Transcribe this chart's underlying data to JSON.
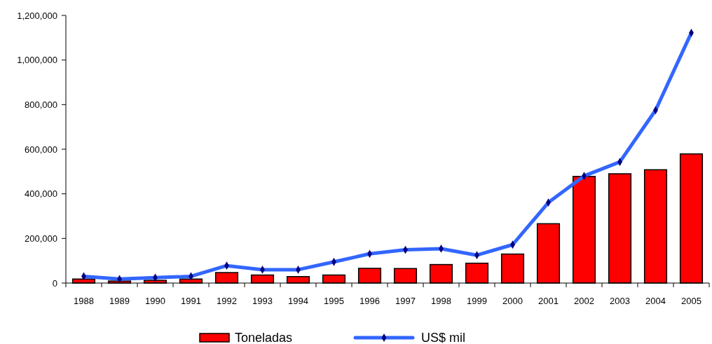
{
  "chart_data": {
    "type": "bar",
    "categories": [
      "1988",
      "1989",
      "1990",
      "1991",
      "1992",
      "1993",
      "1994",
      "1995",
      "1996",
      "1997",
      "1998",
      "1999",
      "2000",
      "2001",
      "2002",
      "2003",
      "2004",
      "2005"
    ],
    "series": [
      {
        "name": "Toneladas",
        "color": "#ff0000",
        "values": [
          18000,
          9000,
          12000,
          18000,
          47000,
          36000,
          29000,
          36000,
          66000,
          65000,
          83000,
          89000,
          130000,
          266000,
          478000,
          490000,
          508000,
          579000
        ]
      },
      {
        "name": "US$ mil",
        "type": "line",
        "color": "#3366ff",
        "marker": "diamond",
        "values": [
          30000,
          18000,
          24000,
          30000,
          78000,
          60000,
          60000,
          95000,
          131000,
          149000,
          154000,
          125000,
          172000,
          361000,
          480000,
          543000,
          775000,
          1122000
        ]
      }
    ],
    "ylim": [
      0,
      1200000
    ],
    "yticks": [
      {
        "value": 0,
        "label": "0"
      },
      {
        "value": 200000,
        "label": "200,000"
      },
      {
        "value": 400000,
        "label": "400,000"
      },
      {
        "value": 600000,
        "label": "600,000"
      },
      {
        "value": 800000,
        "label": "800,000"
      },
      {
        "value": 1000000,
        "label": "1,000,000"
      },
      {
        "value": 1200000,
        "label": "1,200,000"
      }
    ],
    "grid": false,
    "legend": "bottom"
  }
}
